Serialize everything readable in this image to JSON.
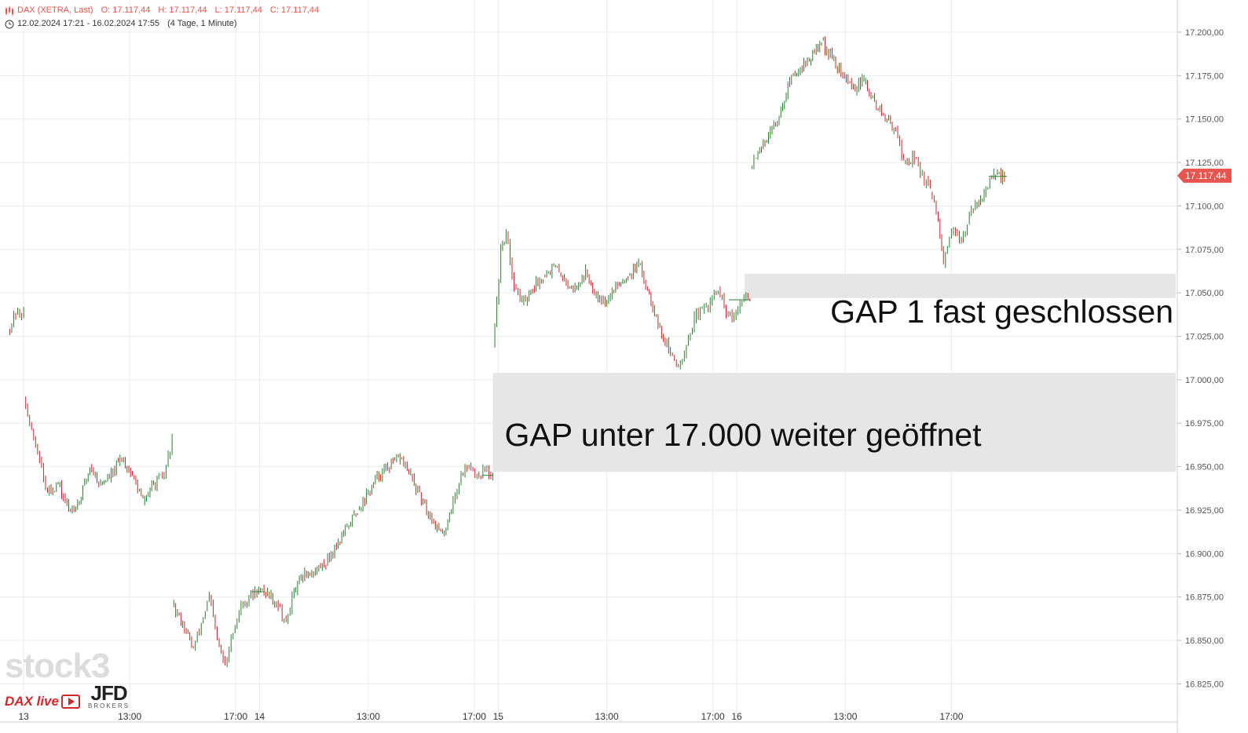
{
  "header": {
    "instrument": "DAX (XETRA, Last)",
    "open": "O: 17.117,44",
    "high": "H: 17.117,44",
    "low": "L: 17.117,44",
    "close": "C: 17.117,44",
    "range": "12.02.2024 17:21 - 16.02.2024 17:55",
    "interval": "(4 Tage, 1 Minute)"
  },
  "last_price_label": "17.117,44",
  "colors": {
    "up": "#2e7d32",
    "down": "#c62828",
    "price_tag": "#e8544e",
    "gap_fill": "#e6e6e6",
    "grid": "#ececec"
  },
  "logos": {
    "stock3": "stock3",
    "dax_live": "DAX live",
    "jfd": "JFD",
    "jfd_sub": "BROKERS"
  },
  "chart_data": {
    "type": "line",
    "y_range": [
      16815,
      17210
    ],
    "y_ticks": [
      {
        "value": 17200,
        "label": "17.200,00"
      },
      {
        "value": 17175,
        "label": "17.175,00"
      },
      {
        "value": 17150,
        "label": "17.150,00"
      },
      {
        "value": 17125,
        "label": "17.125,00"
      },
      {
        "value": 17100,
        "label": "17.100,00"
      },
      {
        "value": 17075,
        "label": "17.075,00"
      },
      {
        "value": 17050,
        "label": "17.050,00"
      },
      {
        "value": 17025,
        "label": "17.025,00"
      },
      {
        "value": 17000,
        "label": "17.000,00"
      },
      {
        "value": 16975,
        "label": "16.975,00"
      },
      {
        "value": 16950,
        "label": "16.950,00"
      },
      {
        "value": 16925,
        "label": "16.925,00"
      },
      {
        "value": 16900,
        "label": "16.900,00"
      },
      {
        "value": 16875,
        "label": "16.875,00"
      },
      {
        "value": 16850,
        "label": "16.850,00"
      },
      {
        "value": 16825,
        "label": "16.825,00"
      }
    ],
    "x_ticks": [
      {
        "t": 0.3,
        "label": "13"
      },
      {
        "t": 4.3,
        "label": "13:00"
      },
      {
        "t": 8.3,
        "label": "17:00"
      },
      {
        "t": 9.2,
        "label": "14"
      },
      {
        "t": 13.3,
        "label": "13:00"
      },
      {
        "t": 17.3,
        "label": "17:00"
      },
      {
        "t": 18.2,
        "label": "15"
      },
      {
        "t": 22.3,
        "label": "13:00"
      },
      {
        "t": 26.3,
        "label": "17:00"
      },
      {
        "t": 27.2,
        "label": "16"
      },
      {
        "t": 31.3,
        "label": "13:00"
      },
      {
        "t": 35.3,
        "label": "17:00"
      }
    ],
    "x_range": [
      -0.3,
      44
    ],
    "series": [
      {
        "values": [
          {
            "t": -0.3,
            "v": 17028
          },
          {
            "t": 0.0,
            "v": 17038
          },
          {
            "t": 0.3,
            "v": 17038
          }
        ]
      },
      {
        "values": [
          {
            "t": 0.3,
            "v": 16990
          },
          {
            "t": 0.6,
            "v": 16970
          },
          {
            "t": 0.9,
            "v": 16955
          },
          {
            "t": 1.2,
            "v": 16935
          },
          {
            "t": 1.6,
            "v": 16940
          },
          {
            "t": 2.0,
            "v": 16925
          },
          {
            "t": 2.4,
            "v": 16930
          },
          {
            "t": 2.8,
            "v": 16950
          },
          {
            "t": 3.2,
            "v": 16940
          },
          {
            "t": 3.6,
            "v": 16945
          },
          {
            "t": 4.0,
            "v": 16955
          },
          {
            "t": 4.4,
            "v": 16945
          },
          {
            "t": 4.8,
            "v": 16930
          },
          {
            "t": 5.2,
            "v": 16940
          },
          {
            "t": 5.6,
            "v": 16945
          },
          {
            "t": 5.9,
            "v": 16965
          }
        ]
      },
      {
        "values": [
          {
            "t": 5.9,
            "v": 16870
          },
          {
            "t": 6.3,
            "v": 16860
          },
          {
            "t": 6.7,
            "v": 16845
          },
          {
            "t": 7.0,
            "v": 16860
          },
          {
            "t": 7.3,
            "v": 16875
          },
          {
            "t": 7.6,
            "v": 16850
          },
          {
            "t": 7.9,
            "v": 16835
          },
          {
            "t": 8.2,
            "v": 16855
          },
          {
            "t": 8.5,
            "v": 16870
          },
          {
            "t": 8.8,
            "v": 16875
          },
          {
            "t": 9.1,
            "v": 16878
          },
          {
            "t": 9.5,
            "v": 16878
          },
          {
            "t": 9.9,
            "v": 16870
          },
          {
            "t": 10.2,
            "v": 16860
          },
          {
            "t": 10.5,
            "v": 16878
          },
          {
            "t": 10.9,
            "v": 16888
          },
          {
            "t": 11.3,
            "v": 16890
          },
          {
            "t": 11.7,
            "v": 16895
          },
          {
            "t": 12.1,
            "v": 16905
          },
          {
            "t": 12.5,
            "v": 16915
          },
          {
            "t": 12.9,
            "v": 16925
          },
          {
            "t": 13.3,
            "v": 16935
          },
          {
            "t": 13.7,
            "v": 16945
          },
          {
            "t": 14.1,
            "v": 16950
          },
          {
            "t": 14.5,
            "v": 16955
          },
          {
            "t": 14.9,
            "v": 16945
          },
          {
            "t": 15.3,
            "v": 16930
          },
          {
            "t": 15.7,
            "v": 16920
          },
          {
            "t": 16.1,
            "v": 16910
          },
          {
            "t": 16.5,
            "v": 16930
          },
          {
            "t": 16.8,
            "v": 16945
          },
          {
            "t": 17.1,
            "v": 16952
          },
          {
            "t": 17.4,
            "v": 16945
          },
          {
            "t": 17.7,
            "v": 16948
          },
          {
            "t": 18.0,
            "v": 16945
          }
        ]
      },
      {
        "values": [
          {
            "t": 18.0,
            "v": 17020
          },
          {
            "t": 18.15,
            "v": 17045
          },
          {
            "t": 18.3,
            "v": 17075
          },
          {
            "t": 18.5,
            "v": 17085
          },
          {
            "t": 18.8,
            "v": 17055
          },
          {
            "t": 19.1,
            "v": 17045
          },
          {
            "t": 19.5,
            "v": 17052
          },
          {
            "t": 19.9,
            "v": 17060
          },
          {
            "t": 20.3,
            "v": 17065
          },
          {
            "t": 20.7,
            "v": 17058
          },
          {
            "t": 21.1,
            "v": 17052
          },
          {
            "t": 21.5,
            "v": 17062
          },
          {
            "t": 21.9,
            "v": 17050
          },
          {
            "t": 22.3,
            "v": 17045
          },
          {
            "t": 22.7,
            "v": 17055
          },
          {
            "t": 23.1,
            "v": 17060
          },
          {
            "t": 23.5,
            "v": 17066
          },
          {
            "t": 23.9,
            "v": 17050
          },
          {
            "t": 24.3,
            "v": 17030
          },
          {
            "t": 24.7,
            "v": 17015
          },
          {
            "t": 25.0,
            "v": 17008
          },
          {
            "t": 25.3,
            "v": 17020
          },
          {
            "t": 25.6,
            "v": 17035
          },
          {
            "t": 25.9,
            "v": 17040
          },
          {
            "t": 26.2,
            "v": 17045
          },
          {
            "t": 26.5,
            "v": 17052
          },
          {
            "t": 26.8,
            "v": 17038
          },
          {
            "t": 27.1,
            "v": 17035
          },
          {
            "t": 27.4,
            "v": 17046
          },
          {
            "t": 27.7,
            "v": 17046
          }
        ]
      },
      {
        "values": [
          {
            "t": 27.7,
            "v": 17122
          },
          {
            "t": 28.0,
            "v": 17132
          },
          {
            "t": 28.4,
            "v": 17140
          },
          {
            "t": 28.8,
            "v": 17152
          },
          {
            "t": 29.2,
            "v": 17172
          },
          {
            "t": 29.6,
            "v": 17180
          },
          {
            "t": 30.0,
            "v": 17185
          },
          {
            "t": 30.4,
            "v": 17195
          },
          {
            "t": 30.8,
            "v": 17185
          },
          {
            "t": 31.2,
            "v": 17175
          },
          {
            "t": 31.6,
            "v": 17168
          },
          {
            "t": 32.0,
            "v": 17172
          },
          {
            "t": 32.4,
            "v": 17160
          },
          {
            "t": 32.8,
            "v": 17150
          },
          {
            "t": 33.2,
            "v": 17145
          },
          {
            "t": 33.5,
            "v": 17125
          },
          {
            "t": 33.9,
            "v": 17128
          },
          {
            "t": 34.2,
            "v": 17118
          },
          {
            "t": 34.5,
            "v": 17108
          },
          {
            "t": 34.8,
            "v": 17092
          },
          {
            "t": 35.0,
            "v": 17065
          },
          {
            "t": 35.3,
            "v": 17085
          },
          {
            "t": 35.6,
            "v": 17080
          },
          {
            "t": 35.9,
            "v": 17090
          },
          {
            "t": 36.2,
            "v": 17100
          },
          {
            "t": 36.6,
            "v": 17110
          },
          {
            "t": 36.9,
            "v": 17117
          },
          {
            "t": 37.3,
            "v": 17117
          }
        ]
      }
    ],
    "gap_zones": [
      {
        "t_start": 18.0,
        "y_low": 16947,
        "y_high": 17004,
        "label": "GAP unter 17.000 weiter geöffnet"
      },
      {
        "t_start": 27.5,
        "y_low": 17047,
        "y_high": 17061,
        "label": "GAP 1 fast geschlossen"
      }
    ],
    "last_price": 17117.44
  }
}
